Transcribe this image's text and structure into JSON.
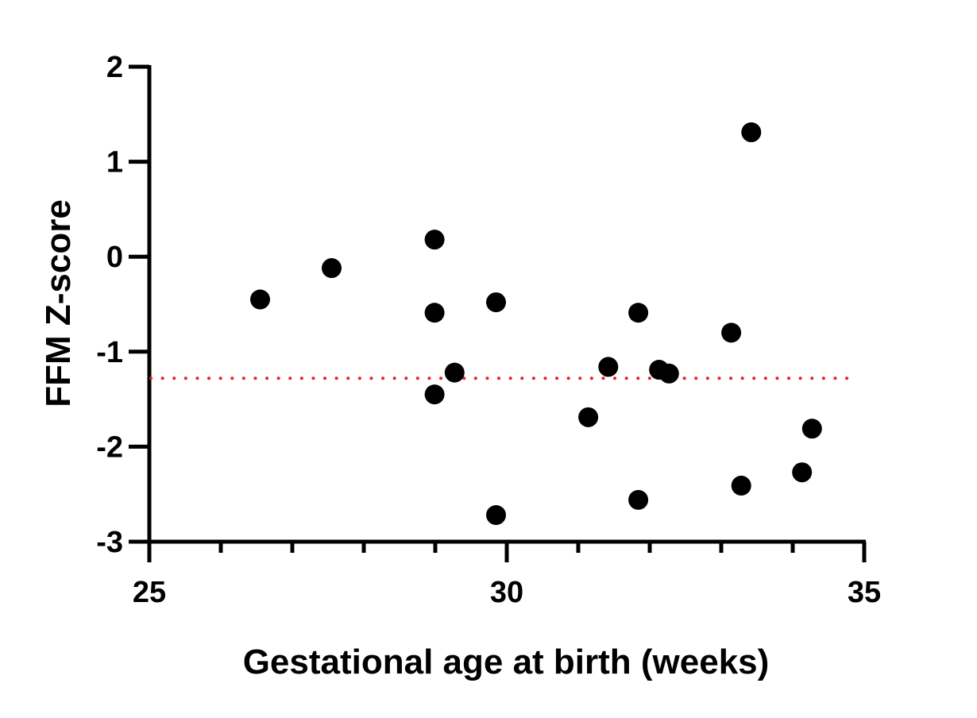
{
  "chart_data": {
    "type": "scatter",
    "title": "",
    "xlabel": "Gestational age at birth (weeks)",
    "ylabel": "FFM Z-score",
    "xlim": [
      25,
      35
    ],
    "ylim": [
      -3,
      2
    ],
    "x_major_ticks": [
      25,
      30,
      35
    ],
    "x_tick_labels": [
      "25",
      "30",
      "35"
    ],
    "x_minor_ticks": [
      26,
      27,
      28,
      29,
      31,
      32,
      33,
      34
    ],
    "y_ticks": [
      2,
      1,
      0,
      -1,
      -2,
      -3
    ],
    "y_tick_labels": [
      "2",
      "1",
      "0",
      "-1",
      "-2",
      "-3"
    ],
    "grid": false,
    "legend": "none",
    "reference_line": {
      "y": -1.28,
      "style": "dotted",
      "color": "#e8232a"
    },
    "marker_color": "#000000",
    "axis_color": "#000000",
    "series": [
      {
        "points": [
          {
            "x": 26.55,
            "y": -0.45
          },
          {
            "x": 27.55,
            "y": -0.12
          },
          {
            "x": 28.99,
            "y": 0.18
          },
          {
            "x": 28.99,
            "y": -0.59
          },
          {
            "x": 28.99,
            "y": -1.45
          },
          {
            "x": 29.27,
            "y": -1.22
          },
          {
            "x": 29.85,
            "y": -0.48
          },
          {
            "x": 29.85,
            "y": -2.72
          },
          {
            "x": 31.14,
            "y": -1.69
          },
          {
            "x": 31.42,
            "y": -1.16
          },
          {
            "x": 31.84,
            "y": -0.59
          },
          {
            "x": 31.84,
            "y": -2.56
          },
          {
            "x": 32.13,
            "y": -1.19
          },
          {
            "x": 32.27,
            "y": -1.23
          },
          {
            "x": 33.14,
            "y": -0.8
          },
          {
            "x": 33.28,
            "y": -2.41
          },
          {
            "x": 33.42,
            "y": 1.31
          },
          {
            "x": 34.13,
            "y": -2.27
          },
          {
            "x": 34.27,
            "y": -1.81
          }
        ]
      }
    ]
  }
}
